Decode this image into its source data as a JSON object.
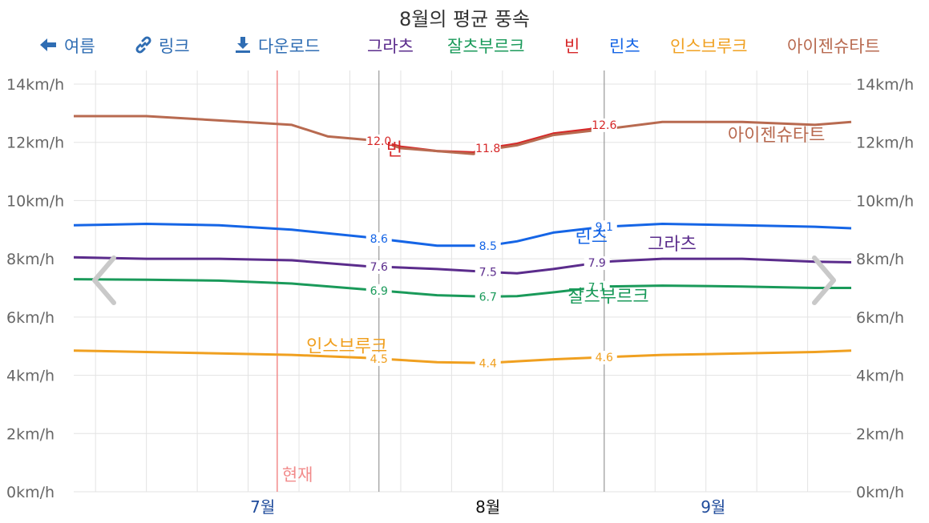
{
  "title": "8월의 평균 풍속",
  "toolbar": {
    "back_label": "여름",
    "link_label": "링크",
    "download_label": "다운로드"
  },
  "now_label": "현재",
  "colors": {
    "toolbar": "#2f6db3",
    "now": "#f28b8b",
    "grid": "#e3e3e3",
    "tick": "#666666",
    "month_link": "#1f4b9b"
  },
  "chart_data": {
    "type": "line",
    "title": "8월의 평균 풍속",
    "ylim": [
      0,
      14
    ],
    "y_ticks": [
      "0km/h",
      "2km/h",
      "4km/h",
      "6km/h",
      "8km/h",
      "10km/h",
      "12km/h",
      "14km/h"
    ],
    "x_range": [
      "2024-06-05",
      "2024-09-20"
    ],
    "x_labels": [
      {
        "label": "7월",
        "date": "2024-07-01",
        "current": false
      },
      {
        "label": "8월",
        "date": "2024-08-01",
        "current": true
      },
      {
        "label": "9월",
        "date": "2024-09-01",
        "current": false
      }
    ],
    "now_date": "2024-07-03",
    "highlight_range": [
      "2024-07-17",
      "2024-08-17"
    ],
    "series": [
      {
        "name": "그라츠",
        "color": "#5b2c8c",
        "x": [
          "2024-06-05",
          "2024-06-15",
          "2024-06-25",
          "2024-07-05",
          "2024-07-15",
          "2024-07-25",
          "2024-08-01",
          "2024-08-05",
          "2024-08-10",
          "2024-08-17",
          "2024-08-25",
          "2024-09-05",
          "2024-09-15",
          "2024-09-20"
        ],
        "y": [
          8.05,
          8.0,
          8.0,
          7.95,
          7.75,
          7.65,
          7.55,
          7.5,
          7.65,
          7.9,
          8.0,
          8.0,
          7.9,
          7.88
        ],
        "labels": [
          {
            "x": "2024-07-17",
            "text": "7.6"
          },
          {
            "x": "2024-08-01",
            "text": "7.5"
          },
          {
            "x": "2024-08-16",
            "text": "7.9"
          }
        ],
        "name_pos": {
          "x": "2024-08-23",
          "y": 8.3
        }
      },
      {
        "name": "잘츠부르크",
        "color": "#1a9a5a",
        "x": [
          "2024-06-05",
          "2024-06-15",
          "2024-06-25",
          "2024-07-05",
          "2024-07-15",
          "2024-07-25",
          "2024-08-01",
          "2024-08-05",
          "2024-08-10",
          "2024-08-17",
          "2024-08-25",
          "2024-09-05",
          "2024-09-15",
          "2024-09-20"
        ],
        "y": [
          7.3,
          7.28,
          7.25,
          7.15,
          6.95,
          6.75,
          6.7,
          6.72,
          6.85,
          7.05,
          7.08,
          7.05,
          7.0,
          7.0
        ],
        "labels": [
          {
            "x": "2024-07-17",
            "text": "6.9"
          },
          {
            "x": "2024-08-01",
            "text": "6.7"
          },
          {
            "x": "2024-08-16",
            "text": "7.1"
          }
        ],
        "name_pos": {
          "x": "2024-08-12",
          "y": 6.5
        }
      },
      {
        "name": "빈",
        "color": "#d62728",
        "x": [
          "2024-07-17",
          "2024-07-20",
          "2024-07-25",
          "2024-07-30",
          "2024-08-01",
          "2024-08-05",
          "2024-08-10",
          "2024-08-15",
          "2024-08-17"
        ],
        "y": [
          12.05,
          11.85,
          11.7,
          11.65,
          11.8,
          11.95,
          12.3,
          12.45,
          12.6
        ],
        "labels": [
          {
            "x": "2024-07-17",
            "text": "12.0"
          },
          {
            "x": "2024-08-01",
            "text": "11.8"
          },
          {
            "x": "2024-08-17",
            "text": "12.6"
          }
        ],
        "name_pos": {
          "x": "2024-07-18",
          "y": 11.55
        }
      },
      {
        "name": "린츠",
        "color": "#1565e6",
        "x": [
          "2024-06-05",
          "2024-06-15",
          "2024-06-25",
          "2024-07-05",
          "2024-07-15",
          "2024-07-25",
          "2024-08-01",
          "2024-08-05",
          "2024-08-10",
          "2024-08-17",
          "2024-08-25",
          "2024-09-05",
          "2024-09-15",
          "2024-09-20"
        ],
        "y": [
          9.15,
          9.2,
          9.15,
          9.0,
          8.75,
          8.45,
          8.45,
          8.6,
          8.9,
          9.1,
          9.2,
          9.15,
          9.1,
          9.05
        ],
        "labels": [
          {
            "x": "2024-07-17",
            "text": "8.6"
          },
          {
            "x": "2024-08-01",
            "text": "8.5"
          },
          {
            "x": "2024-08-17",
            "text": "9.1"
          }
        ],
        "name_pos": {
          "x": "2024-08-13",
          "y": 8.55
        }
      },
      {
        "name": "인스브루크",
        "color": "#f0a020",
        "x": [
          "2024-06-05",
          "2024-06-15",
          "2024-06-25",
          "2024-07-05",
          "2024-07-15",
          "2024-07-25",
          "2024-08-01",
          "2024-08-05",
          "2024-08-10",
          "2024-08-17",
          "2024-08-25",
          "2024-09-05",
          "2024-09-15",
          "2024-09-20"
        ],
        "y": [
          4.85,
          4.8,
          4.75,
          4.7,
          4.6,
          4.45,
          4.42,
          4.48,
          4.55,
          4.62,
          4.7,
          4.75,
          4.8,
          4.85
        ],
        "labels": [
          {
            "x": "2024-07-17",
            "text": "4.5"
          },
          {
            "x": "2024-08-01",
            "text": "4.4"
          },
          {
            "x": "2024-08-17",
            "text": "4.6"
          }
        ],
        "name_pos": {
          "x": "2024-07-07",
          "y": 4.8
        }
      },
      {
        "name": "아이젠슈타트",
        "color": "#b86a50",
        "x": [
          "2024-06-05",
          "2024-06-15",
          "2024-06-25",
          "2024-07-05",
          "2024-07-10",
          "2024-07-17",
          "2024-07-20",
          "2024-07-25",
          "2024-07-30",
          "2024-08-01",
          "2024-08-05",
          "2024-08-10",
          "2024-08-17",
          "2024-08-25",
          "2024-09-05",
          "2024-09-15",
          "2024-09-20"
        ],
        "y": [
          12.9,
          12.9,
          12.75,
          12.6,
          12.2,
          12.05,
          11.8,
          11.7,
          11.6,
          11.75,
          11.9,
          12.25,
          12.45,
          12.7,
          12.7,
          12.6,
          12.7
        ],
        "labels": [],
        "name_pos": {
          "x": "2024-09-03",
          "y": 12.05
        }
      }
    ]
  }
}
